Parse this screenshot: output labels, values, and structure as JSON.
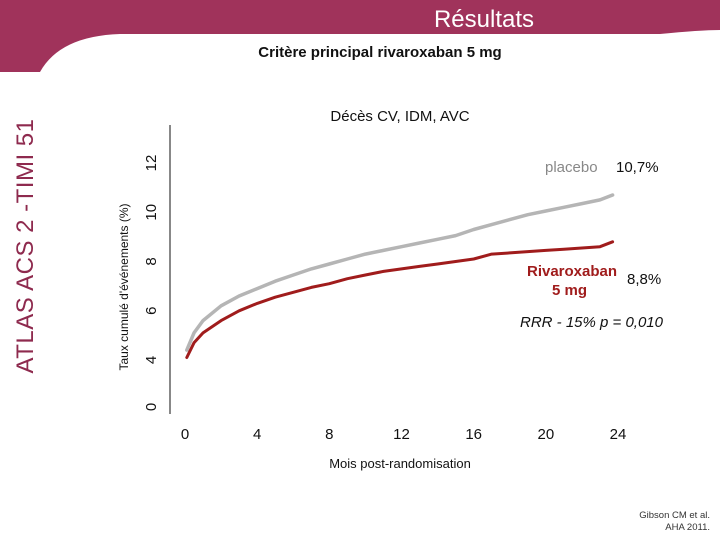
{
  "header": {
    "title": "Résultats",
    "subtitle": "Critère principal rivaroxaban 5 mg",
    "side_label": "ATLAS ACS 2 -TIMI 51",
    "banner_color": "#a0335b",
    "accent_color": "#8e2a4e"
  },
  "chart_data": {
    "type": "line",
    "title": "Décès CV, IDM, AVC",
    "xlabel": "Mois post-randomisation",
    "ylabel": "Taux cumulé d'événements (%)",
    "x_ticks": [
      0,
      4,
      8,
      12,
      16,
      20,
      24
    ],
    "y_ticks": [
      0,
      4,
      6,
      8,
      10,
      12
    ],
    "xlim": [
      0,
      24
    ],
    "series": [
      {
        "name": "placebo",
        "final_label": "10,7%",
        "color": "#b5b5b5",
        "x": [
          0.1,
          0.5,
          1,
          2,
          3,
          4,
          5,
          6,
          7,
          8,
          9,
          10,
          11,
          12,
          13,
          14,
          15,
          16,
          17,
          18,
          19,
          20,
          21,
          22,
          23,
          23.7
        ],
        "y": [
          4.4,
          5.1,
          5.6,
          6.2,
          6.6,
          6.9,
          7.2,
          7.45,
          7.7,
          7.9,
          8.1,
          8.3,
          8.45,
          8.6,
          8.75,
          8.9,
          9.05,
          9.3,
          9.5,
          9.7,
          9.9,
          10.05,
          10.2,
          10.35,
          10.5,
          10.7
        ]
      },
      {
        "name": "Rivaroxaban 5 mg",
        "final_label": "8,8%",
        "color": "#a01c1c",
        "x": [
          0.1,
          0.5,
          1,
          2,
          3,
          4,
          5,
          6,
          7,
          8,
          9,
          10,
          11,
          12,
          13,
          14,
          15,
          16,
          17,
          18,
          19,
          20,
          21,
          22,
          23,
          23.7
        ],
        "y": [
          4.1,
          4.7,
          5.1,
          5.6,
          6.0,
          6.3,
          6.55,
          6.75,
          6.95,
          7.1,
          7.3,
          7.45,
          7.6,
          7.7,
          7.8,
          7.9,
          8.0,
          8.1,
          8.3,
          8.35,
          8.4,
          8.45,
          8.5,
          8.55,
          8.6,
          8.8
        ]
      }
    ],
    "annotations": {
      "placebo_label": "placebo",
      "placebo_value": "10,7%",
      "riva_label_line1": "Rivaroxaban",
      "riva_label_line2": "5 mg",
      "riva_value": "8,8%",
      "rrr": "RRR - 15% p = 0,010"
    }
  },
  "footnote": {
    "line1": "Gibson CM et al.",
    "line2": "AHA 2011."
  }
}
